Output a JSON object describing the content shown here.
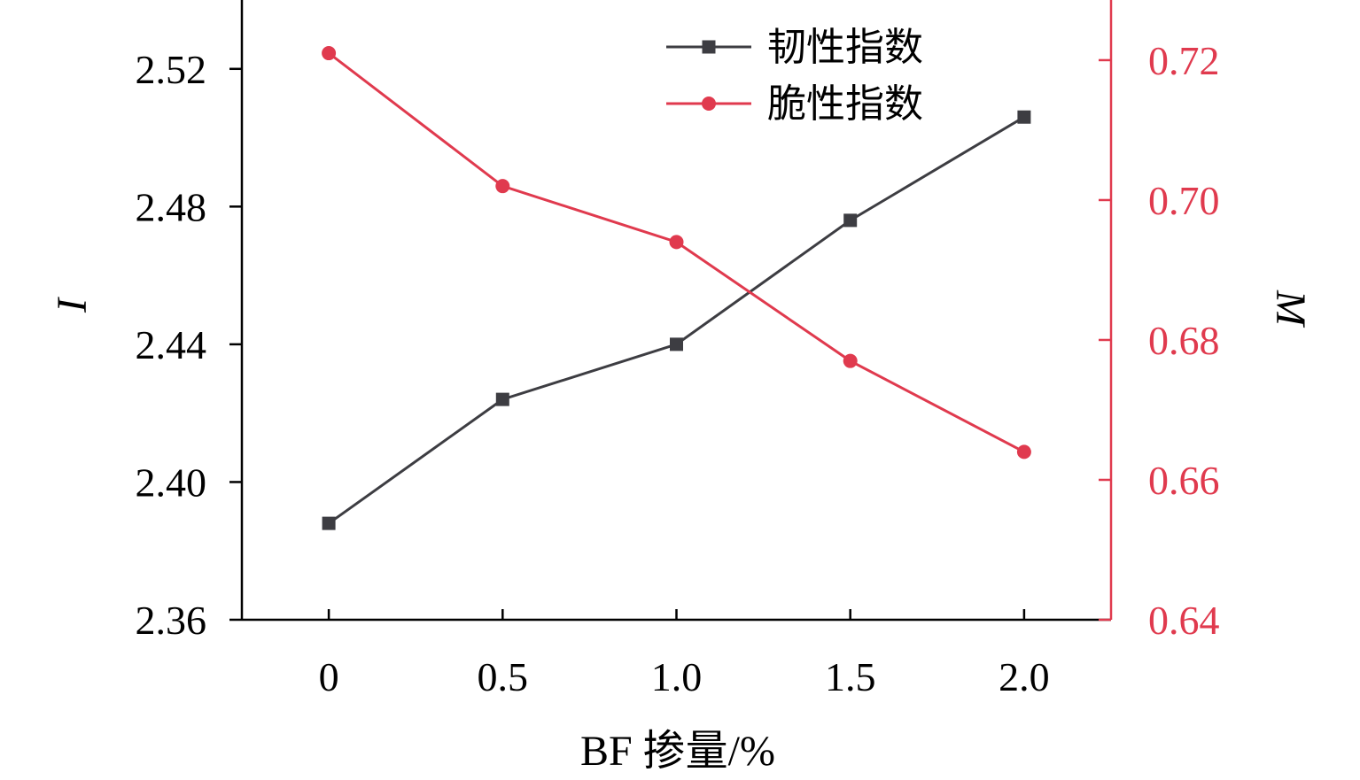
{
  "chart_data": {
    "type": "line",
    "xlabel": "BF 掺量/%",
    "x": [
      0,
      0.5,
      1.0,
      1.5,
      2.0
    ],
    "x_tick_labels": [
      "0",
      "0.5",
      "1.0",
      "1.5",
      "2.0"
    ],
    "x_range": [
      -0.25,
      2.25
    ],
    "y_left": {
      "label": "I",
      "ylim": [
        2.36,
        2.54
      ],
      "ticks": [
        2.36,
        2.4,
        2.44,
        2.48,
        2.52
      ],
      "tick_labels": [
        "2.36",
        "2.40",
        "2.44",
        "2.48",
        "2.52"
      ],
      "color": "#000000"
    },
    "y_right": {
      "label": "M",
      "ylim": [
        0.64,
        0.7286
      ],
      "ticks": [
        0.64,
        0.66,
        0.68,
        0.7,
        0.72
      ],
      "tick_labels": [
        "0.64",
        "0.66",
        "0.68",
        "0.70",
        "0.72"
      ],
      "color": "#e03a4e"
    },
    "series": [
      {
        "name": "韧性指数",
        "axis": "left",
        "marker": "square",
        "color": "#3d3d42",
        "values": [
          2.388,
          2.424,
          2.44,
          2.476,
          2.506
        ]
      },
      {
        "name": "脆性指数",
        "axis": "right",
        "marker": "circle",
        "color": "#e03a4e",
        "values": [
          0.721,
          0.702,
          0.694,
          0.677,
          0.664
        ]
      }
    ],
    "legend_position": "top-center",
    "grid": false
  }
}
